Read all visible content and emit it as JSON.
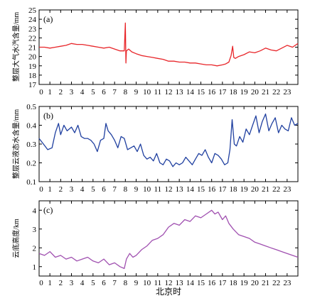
{
  "figure": {
    "xlabel": "北京时"
  },
  "chart_data": [
    {
      "type": "line",
      "panel_label": "(a)",
      "ylabel": "整层大气水汽含量/mm",
      "ylim": [
        17,
        25
      ],
      "yticks": [
        17,
        18,
        19,
        20,
        21,
        22,
        23,
        24,
        25
      ],
      "xlim": [
        0,
        24
      ],
      "xticks": [
        0,
        1,
        2,
        3,
        4,
        5,
        6,
        7,
        8,
        9,
        10,
        11,
        12,
        13,
        14,
        15,
        16,
        17,
        18,
        19,
        20,
        21,
        22,
        23
      ],
      "color": "#e8262a",
      "series": [
        {
          "x": [
            0,
            0.5,
            1,
            1.5,
            2,
            2.5,
            3,
            3.5,
            4,
            4.5,
            5,
            5.5,
            6,
            6.5,
            7,
            7.5,
            7.9,
            8.0,
            8.05,
            8.1,
            8.3,
            8.6,
            9,
            9.5,
            10,
            10.5,
            11,
            11.5,
            12,
            12.5,
            13,
            13.5,
            14,
            14.5,
            15,
            15.5,
            16,
            16.5,
            17,
            17.3,
            17.6,
            17.8,
            17.95,
            18.05,
            18.2,
            18.5,
            19,
            19.5,
            20,
            20.5,
            21,
            21.5,
            22,
            22.5,
            23,
            23.5,
            24
          ],
          "y": [
            21.0,
            21.0,
            20.9,
            21.0,
            21.1,
            21.2,
            21.4,
            21.3,
            21.3,
            21.2,
            21.1,
            21.0,
            20.9,
            21.0,
            20.8,
            20.6,
            20.6,
            23.6,
            19.3,
            20.6,
            20.8,
            20.5,
            20.3,
            20.1,
            20.0,
            19.9,
            19.8,
            19.7,
            19.5,
            19.5,
            19.4,
            19.4,
            19.3,
            19.3,
            19.2,
            19.1,
            19.1,
            19.0,
            19.1,
            19.2,
            19.4,
            20.1,
            21.1,
            19.9,
            19.8,
            20.0,
            20.2,
            20.5,
            20.4,
            20.6,
            20.9,
            20.7,
            20.6,
            20.9,
            21.2,
            21.0,
            21.4
          ]
        }
      ]
    },
    {
      "type": "line",
      "panel_label": "(b)",
      "ylabel": "整层云液态水含量/mm",
      "ylim": [
        0.1,
        0.5
      ],
      "yticks": [
        0.1,
        0.2,
        0.3,
        0.4,
        0.5
      ],
      "xlim": [
        0,
        24
      ],
      "xticks": [
        0,
        1,
        2,
        3,
        4,
        5,
        6,
        7,
        8,
        9,
        10,
        11,
        12,
        13,
        14,
        15,
        16,
        17,
        18,
        19,
        20,
        21,
        22,
        23
      ],
      "color": "#2040a0",
      "series": [
        {
          "x": [
            0,
            0.4,
            0.8,
            1.2,
            1.5,
            1.8,
            2.0,
            2.3,
            2.6,
            3.0,
            3.3,
            3.6,
            3.9,
            4.2,
            4.5,
            4.8,
            5.1,
            5.4,
            5.7,
            6.0,
            6.2,
            6.4,
            6.7,
            7.0,
            7.3,
            7.6,
            7.9,
            8.2,
            8.5,
            8.8,
            9.1,
            9.4,
            9.7,
            10.0,
            10.3,
            10.6,
            10.9,
            11.2,
            11.5,
            11.8,
            12.1,
            12.4,
            12.7,
            13.0,
            13.3,
            13.6,
            13.9,
            14.2,
            14.5,
            14.8,
            15.1,
            15.4,
            15.7,
            16.0,
            16.3,
            16.6,
            16.9,
            17.2,
            17.5,
            17.7,
            17.9,
            18.1,
            18.3,
            18.6,
            18.9,
            19.2,
            19.5,
            19.8,
            20.1,
            20.4,
            20.7,
            21.0,
            21.3,
            21.6,
            21.9,
            22.2,
            22.5,
            22.8,
            23.1,
            23.4,
            23.7,
            24.0
          ],
          "y": [
            0.33,
            0.3,
            0.27,
            0.28,
            0.36,
            0.41,
            0.35,
            0.4,
            0.37,
            0.39,
            0.36,
            0.4,
            0.34,
            0.33,
            0.33,
            0.32,
            0.3,
            0.26,
            0.32,
            0.33,
            0.41,
            0.37,
            0.35,
            0.32,
            0.28,
            0.34,
            0.33,
            0.27,
            0.28,
            0.29,
            0.26,
            0.3,
            0.24,
            0.22,
            0.23,
            0.21,
            0.25,
            0.2,
            0.19,
            0.22,
            0.21,
            0.18,
            0.2,
            0.19,
            0.2,
            0.23,
            0.21,
            0.19,
            0.22,
            0.25,
            0.24,
            0.27,
            0.23,
            0.2,
            0.25,
            0.24,
            0.22,
            0.19,
            0.2,
            0.27,
            0.43,
            0.3,
            0.29,
            0.34,
            0.31,
            0.38,
            0.35,
            0.4,
            0.45,
            0.36,
            0.42,
            0.46,
            0.37,
            0.41,
            0.44,
            0.36,
            0.4,
            0.38,
            0.37,
            0.44,
            0.4,
            0.41
          ]
        }
      ]
    },
    {
      "type": "line",
      "panel_label": "(c)",
      "ylabel": "云底高度/km",
      "ylim": [
        0.5,
        4.5
      ],
      "yticks": [
        1,
        2,
        3,
        4
      ],
      "xlim": [
        0,
        24
      ],
      "xticks": [
        0,
        1,
        2,
        3,
        4,
        5,
        6,
        7,
        8,
        9,
        10,
        11,
        12,
        13,
        14,
        15,
        16,
        17,
        18,
        19,
        20,
        21,
        22,
        23
      ],
      "color": "#a050b0",
      "series": [
        {
          "x": [
            0,
            0.5,
            1,
            1.5,
            2,
            2.5,
            3,
            3.5,
            4,
            4.5,
            5,
            5.5,
            6,
            6.5,
            7,
            7.5,
            7.9,
            8.1,
            8.4,
            8.7,
            9,
            9.5,
            10,
            10.5,
            11,
            11.5,
            12,
            12.5,
            13,
            13.5,
            14,
            14.5,
            15,
            15.5,
            16,
            16.3,
            16.6,
            17,
            17.3,
            17.6,
            18,
            18.5,
            19,
            19.5,
            20,
            20.5,
            21,
            21.5,
            22,
            22.5,
            23,
            23.5,
            24
          ],
          "y": [
            1.7,
            1.6,
            1.8,
            1.5,
            1.6,
            1.4,
            1.5,
            1.3,
            1.4,
            1.5,
            1.3,
            1.2,
            1.4,
            1.1,
            1.2,
            1.0,
            0.9,
            1.4,
            1.7,
            1.5,
            1.6,
            1.9,
            2.1,
            2.4,
            2.5,
            2.7,
            3.1,
            3.3,
            3.2,
            3.5,
            3.4,
            3.7,
            3.6,
            3.8,
            4.0,
            3.8,
            3.9,
            3.5,
            3.7,
            3.3,
            3.0,
            2.7,
            2.6,
            2.5,
            2.3,
            2.2,
            2.1,
            2.0,
            1.9,
            1.8,
            1.7,
            1.6,
            1.5
          ]
        }
      ]
    }
  ]
}
